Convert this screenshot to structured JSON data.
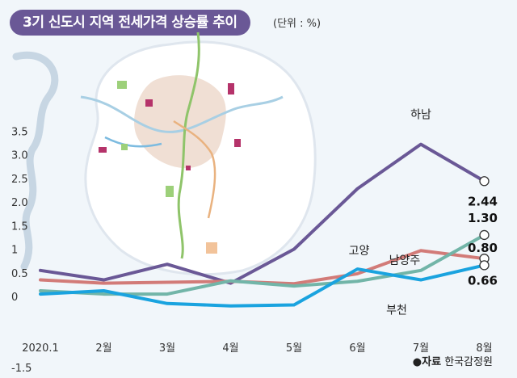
{
  "chart_data": {
    "type": "line",
    "title": "3기 신도시 지역 전세가격 상승률 추이",
    "unit_label": "(단위 : %)",
    "categories": [
      "2020.1",
      "2월",
      "3월",
      "4월",
      "5월",
      "6월",
      "7월",
      "8월"
    ],
    "ylim": [
      -1.5,
      3.5
    ],
    "y_ticks": [
      "3.5",
      "3.0",
      "2.5",
      "2.0",
      "1.5",
      "1",
      "0.5",
      "0",
      "-1.5"
    ],
    "y_tick_values": [
      3.5,
      3.0,
      2.5,
      2.0,
      1.5,
      1.0,
      0.5,
      0.0,
      -1.5
    ],
    "grid": false,
    "series": [
      {
        "name": "하남",
        "color": "#6a5896",
        "values": [
          0.55,
          0.35,
          0.68,
          0.28,
          1.0,
          2.28,
          3.22,
          2.44
        ],
        "end_label": "2.44"
      },
      {
        "name": "남양주",
        "color": "#72b5a8",
        "values": [
          0.12,
          0.05,
          0.05,
          0.33,
          0.22,
          0.32,
          0.55,
          1.3
        ],
        "end_label": "1.30"
      },
      {
        "name": "고양",
        "color": "#d27b78",
        "values": [
          0.35,
          0.28,
          0.3,
          0.32,
          0.27,
          0.48,
          0.97,
          0.8
        ],
        "end_label": "0.80"
      },
      {
        "name": "부천",
        "color": "#1aa3df",
        "values": [
          0.05,
          0.12,
          -0.15,
          -0.2,
          -0.18,
          0.58,
          0.35,
          0.66
        ],
        "end_label": "0.66"
      }
    ]
  },
  "source": {
    "prefix": "●자료",
    "text": " 한국감정원"
  }
}
